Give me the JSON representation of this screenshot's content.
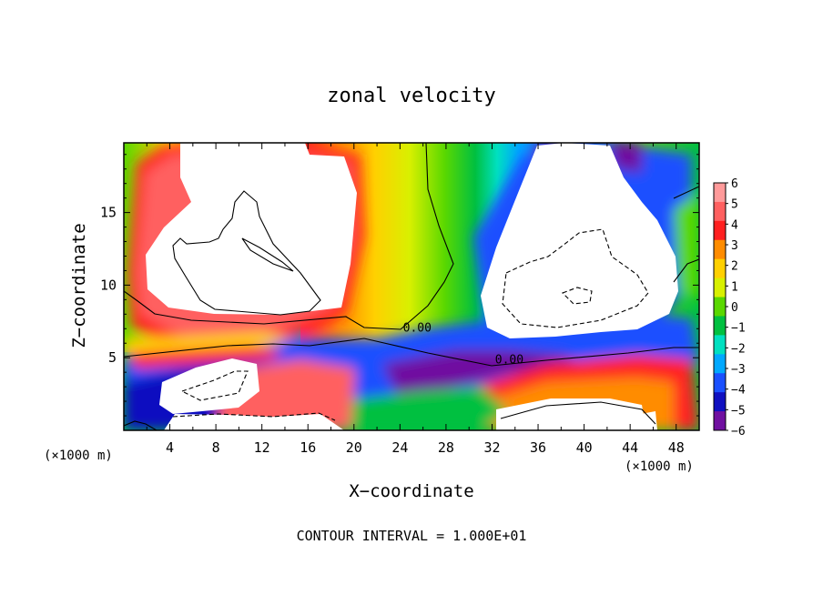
{
  "chart_data": {
    "type": "heatmap",
    "title": "zonal velocity",
    "xlabel": "X−coordinate",
    "ylabel": "Z−coordinate",
    "x_unit_label": "(×1000 m)",
    "z_unit_label": "(×1000 m)",
    "footer": "CONTOUR INTERVAL = 1.000E+01",
    "xlim": [
      0,
      50
    ],
    "ylim": [
      0,
      19.8
    ],
    "x_ticks": [
      "4",
      "8",
      "12",
      "16",
      "20",
      "24",
      "28",
      "32",
      "36",
      "40",
      "44",
      "48"
    ],
    "y_ticks": [
      "5",
      "10",
      "15"
    ],
    "colorbar": {
      "min": -6,
      "max": 6,
      "labels": [
        "6",
        "5",
        "4",
        "3",
        "2",
        "1",
        "0",
        "−1",
        "−2",
        "−3",
        "−4",
        "−5",
        "−6"
      ],
      "colors": [
        "#ff9a9a",
        "#ff6060",
        "#ff2020",
        "#ff8c00",
        "#ffd000",
        "#d8f000",
        "#5ad800",
        "#00c040",
        "#00e0c0",
        "#00a8ff",
        "#1a50ff",
        "#1010c0",
        "#7010a0"
      ]
    },
    "contour_labels": [
      {
        "text": "0.00",
        "x": 25.5,
        "z": 6.8
      },
      {
        "text": "0.00",
        "x": 33.5,
        "z": 4.6
      }
    ],
    "notes_value_regions": [
      {
        "value_range": [
          6,
          10
        ],
        "center_x": 13,
        "center_z": 13,
        "sign": "positive"
      },
      {
        "value_range": [
          -10,
          -6
        ],
        "center_x": 41,
        "center_z": 11,
        "sign": "negative"
      },
      {
        "value_range": [
          6,
          10
        ],
        "center_x": 40,
        "center_z": 1,
        "sign": "positive"
      },
      {
        "value_range": [
          -10,
          -6
        ],
        "center_x": 11,
        "center_z": 2,
        "sign": "negative"
      }
    ]
  }
}
